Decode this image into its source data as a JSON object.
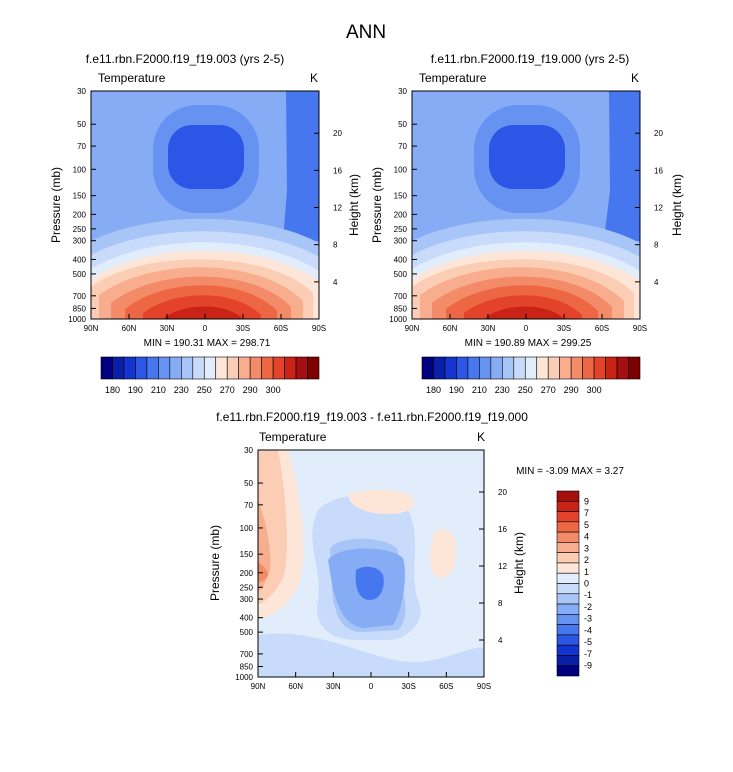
{
  "page": {
    "title": "ANN"
  },
  "colors": {
    "warm_scale": [
      "#00007f",
      "#0a1fa8",
      "#1434cf",
      "#2b56e6",
      "#4677ef",
      "#6693f2",
      "#86acf5",
      "#a8c5f7",
      "#c8dbfa",
      "#e2edfc",
      "#fde6d7",
      "#fbcdb5",
      "#f8ae8e",
      "#f48b68",
      "#ee6744",
      "#e2432a",
      "#c92216",
      "#a50f0f",
      "#7f0000"
    ],
    "diff_scale": [
      "#00007f",
      "#0a1fa8",
      "#1434cf",
      "#2b56e6",
      "#4677ef",
      "#6693f2",
      "#86acf5",
      "#a8c5f7",
      "#c8dbfa",
      "#e2edfc",
      "#fde6d7",
      "#fbcdb5",
      "#f8ae8e",
      "#f48b68",
      "#ee6744",
      "#e2432a",
      "#c92216",
      "#a50f0f"
    ]
  },
  "chart_data": [
    {
      "type": "heatmap",
      "title": "f.e11.rbn.F2000.f19_f19.003 (yrs 2-5)",
      "left_label": "Temperature",
      "right_label": "K",
      "ylabel": "Pressure (mb)",
      "y2label": "Height (km)",
      "x_ticks": [
        "90N",
        "60N",
        "30N",
        "0",
        "30S",
        "60S",
        "90S"
      ],
      "y_ticks": [
        "30",
        "50",
        "70",
        "100",
        "150",
        "200",
        "250",
        "300",
        "400",
        "500",
        "700",
        "850",
        "1000"
      ],
      "y2_ticks": [
        "20",
        "16",
        "12",
        "8",
        "4"
      ],
      "stats": "MIN = 190.31  MAX = 298.71",
      "colorbar_ticks": [
        "180",
        "190",
        "210",
        "230",
        "250",
        "270",
        "290",
        "300"
      ]
    },
    {
      "type": "heatmap",
      "title": "f.e11.rbn.F2000.f19_f19.000 (yrs 2-5)",
      "left_label": "Temperature",
      "right_label": "K",
      "ylabel": "Pressure (mb)",
      "y2label": "Height (km)",
      "x_ticks": [
        "90N",
        "60N",
        "30N",
        "0",
        "30S",
        "60S",
        "90S"
      ],
      "y_ticks": [
        "30",
        "50",
        "70",
        "100",
        "150",
        "200",
        "250",
        "300",
        "400",
        "500",
        "700",
        "850",
        "1000"
      ],
      "y2_ticks": [
        "20",
        "16",
        "12",
        "8",
        "4"
      ],
      "stats": "MIN = 190.89  MAX = 299.25",
      "colorbar_ticks": [
        "180",
        "190",
        "210",
        "230",
        "250",
        "270",
        "290",
        "300"
      ]
    },
    {
      "type": "heatmap",
      "title": "f.e11.rbn.F2000.f19_f19.003 - f.e11.rbn.F2000.f19_f19.000",
      "left_label": "Temperature",
      "right_label": "K",
      "ylabel": "Pressure (mb)",
      "y2label": "Height (km)",
      "x_ticks": [
        "90N",
        "60N",
        "30N",
        "0",
        "30S",
        "60S",
        "90S"
      ],
      "y_ticks": [
        "30",
        "50",
        "70",
        "100",
        "150",
        "200",
        "250",
        "300",
        "400",
        "500",
        "700",
        "850",
        "1000"
      ],
      "y2_ticks": [
        "20",
        "16",
        "12",
        "8",
        "4"
      ],
      "stats": "MIN =  -3.09  MAX =   3.27",
      "colorbar_ticks": [
        "9",
        "7",
        "5",
        "4",
        "3",
        "2",
        "1",
        "0",
        "-1",
        "-2",
        "-3",
        "-4",
        "-5",
        "-7",
        "-9"
      ]
    }
  ]
}
